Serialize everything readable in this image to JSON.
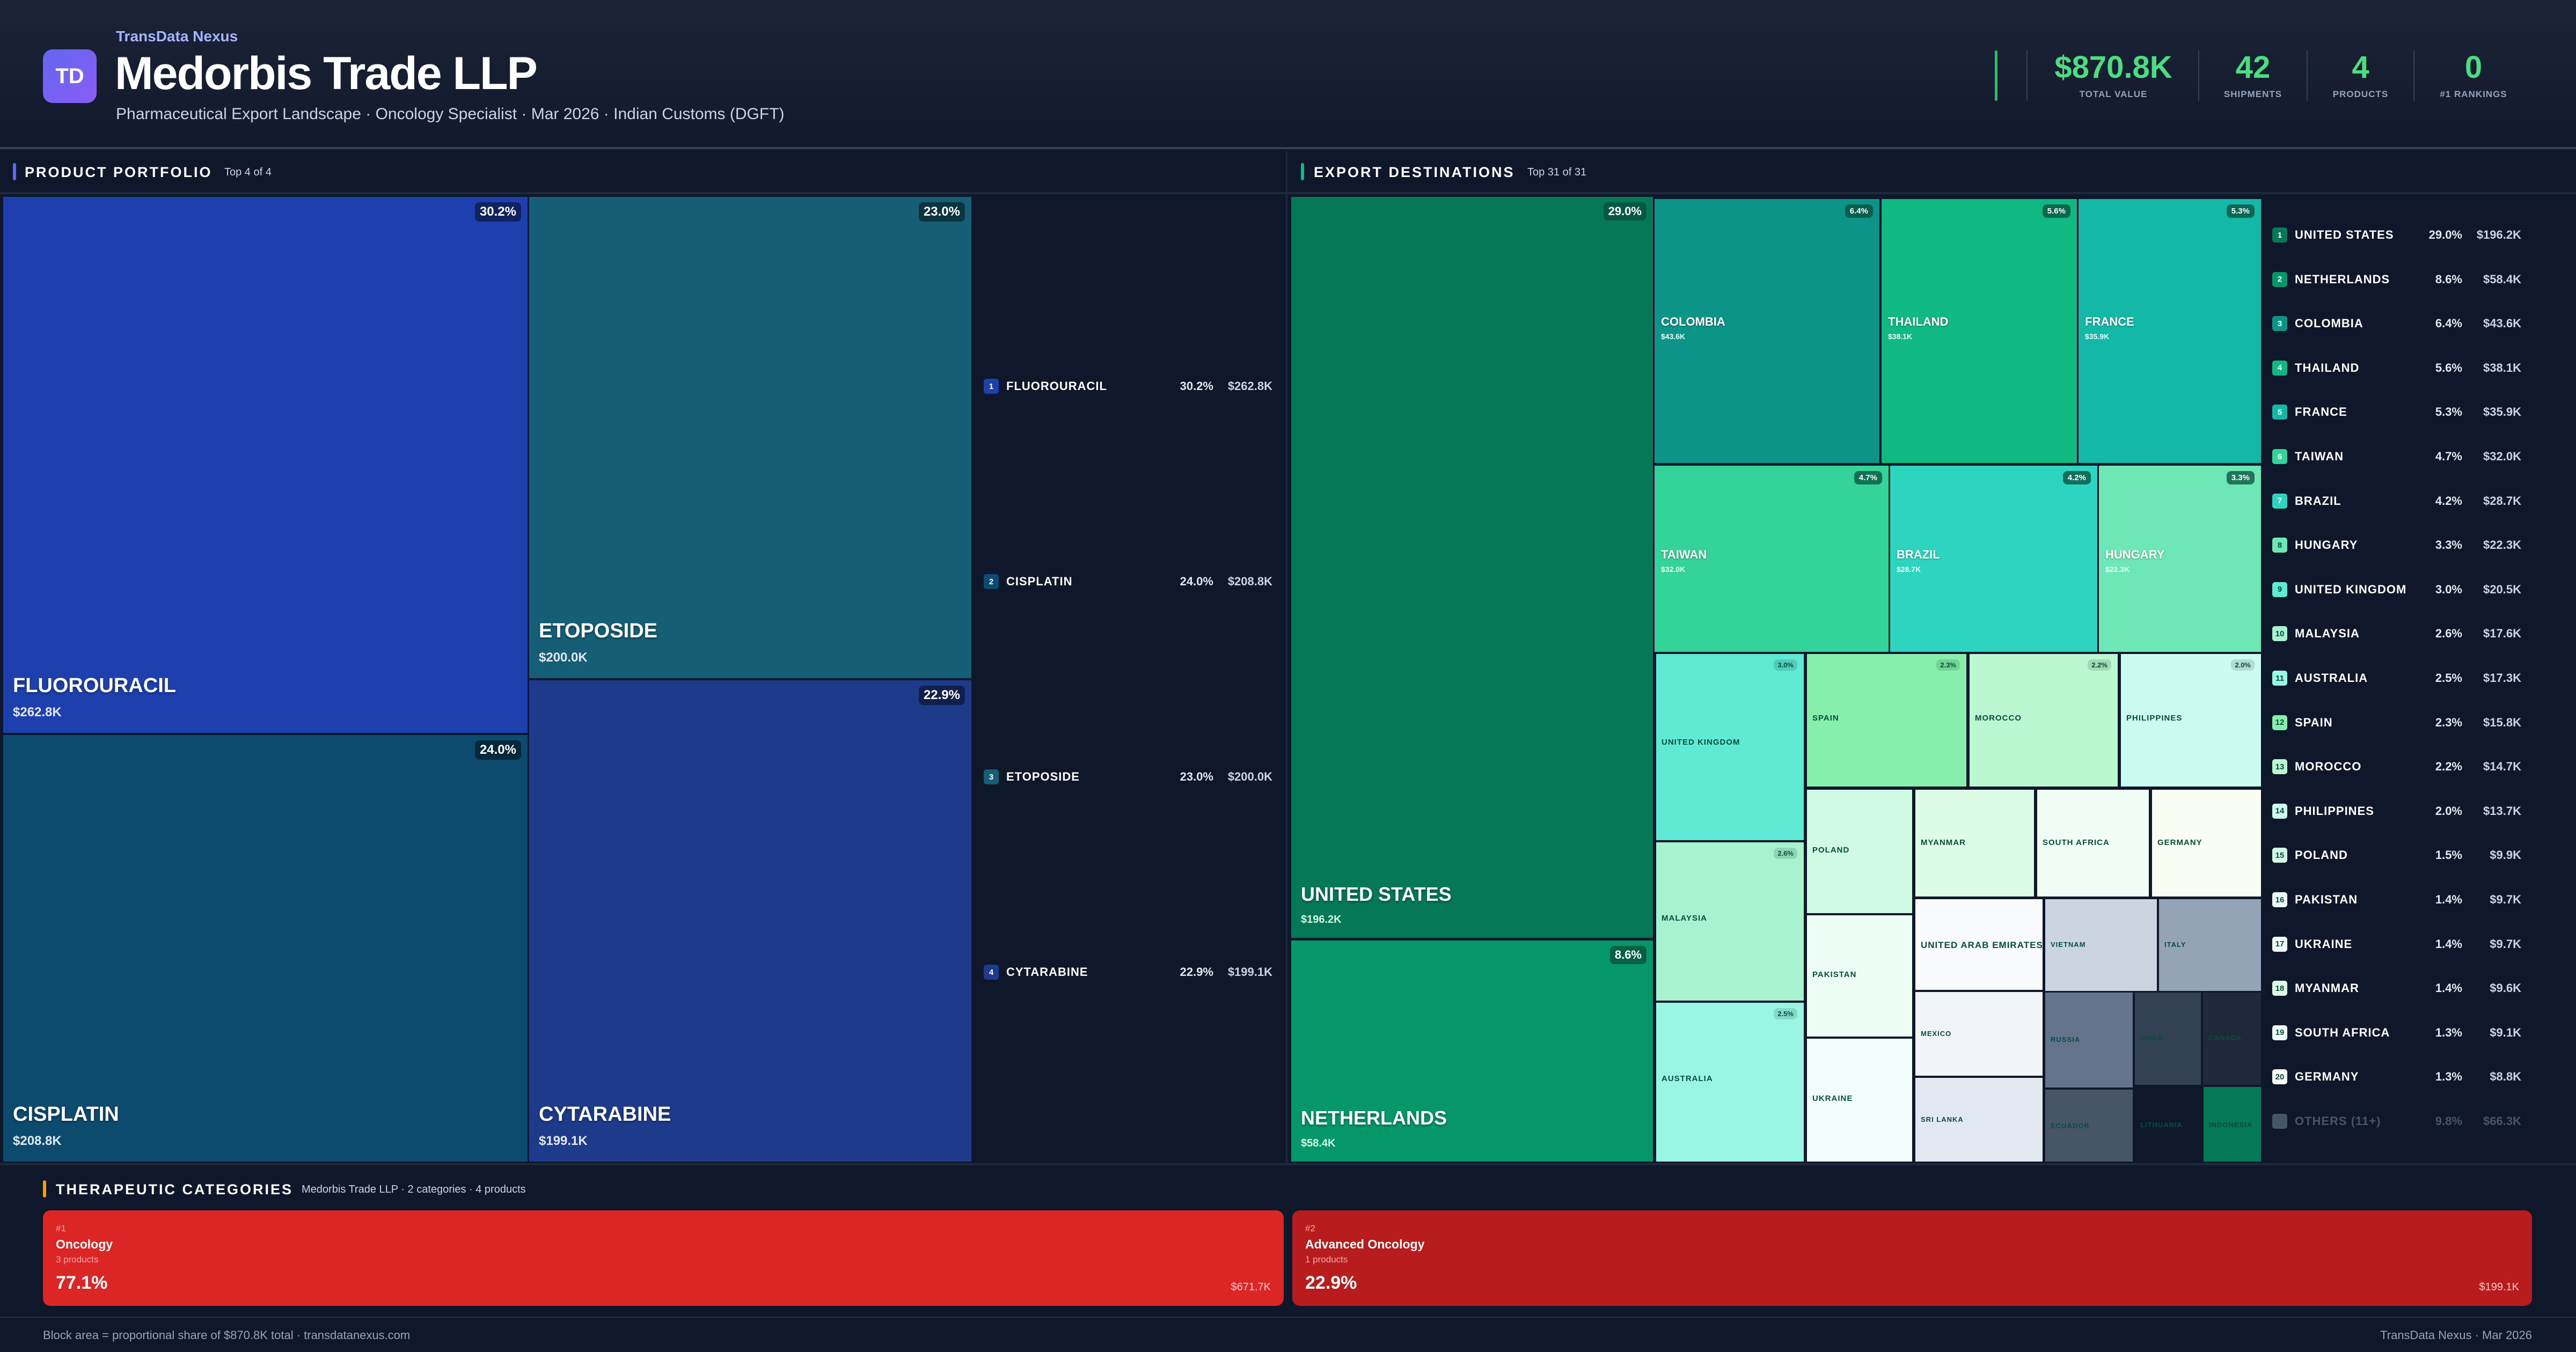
{
  "header": {
    "logo_text": "TD",
    "brand": "TransData Nexus",
    "title": "Medorbis Trade LLP",
    "subtitle": "Pharmaceutical Export Landscape · Oncology Specialist · Mar 2026 · Indian Customs (DGFT)",
    "accent_color": "#22c55e",
    "kpis": [
      {
        "value": "$870.8K",
        "label": "TOTAL VALUE"
      },
      {
        "value": "42",
        "label": "SHIPMENTS"
      },
      {
        "value": "4",
        "label": "PRODUCTS"
      },
      {
        "value": "0",
        "label": "#1 RANKINGS"
      }
    ]
  },
  "product_section": {
    "title": "PRODUCT PORTFOLIO",
    "subtitle": "Top 4 of 4",
    "accent_color": "#6366f1"
  },
  "export_section": {
    "title": "EXPORT DESTINATIONS",
    "subtitle": "Top 31 of 31",
    "accent_color": "#10b981"
  },
  "chart_data": [
    {
      "type": "treemap",
      "title": "PRODUCT PORTFOLIO",
      "items": [
        {
          "rank": "1",
          "name": "FLUOROURACIL",
          "pct": "30.2%",
          "value": "$262.8K",
          "color": "#1e40af"
        },
        {
          "rank": "2",
          "name": "CISPLATIN",
          "pct": "24.0%",
          "value": "$208.8K",
          "color": "#0c4a6e"
        },
        {
          "rank": "3",
          "name": "ETOPOSIDE",
          "pct": "23.0%",
          "value": "$200.0K",
          "color": "#155e75"
        },
        {
          "rank": "4",
          "name": "CYTARABINE",
          "pct": "22.9%",
          "value": "$199.1K",
          "color": "#1e3a8a"
        }
      ]
    },
    {
      "type": "treemap",
      "title": "EXPORT DESTINATIONS",
      "items": [
        {
          "rank": "1",
          "name": "UNITED STATES",
          "pct": "29.0%",
          "value": "$196.2K",
          "color": "#047857"
        },
        {
          "rank": "2",
          "name": "NETHERLANDS",
          "pct": "8.6%",
          "value": "$58.4K",
          "color": "#059669"
        },
        {
          "rank": "3",
          "name": "COLOMBIA",
          "pct": "6.4%",
          "value": "$43.6K",
          "color": "#0d9488"
        },
        {
          "rank": "4",
          "name": "THAILAND",
          "pct": "5.6%",
          "value": "$38.1K",
          "color": "#10b981"
        },
        {
          "rank": "5",
          "name": "FRANCE",
          "pct": "5.3%",
          "value": "$35.9K",
          "color": "#14b8a6"
        },
        {
          "rank": "6",
          "name": "TAIWAN",
          "pct": "4.7%",
          "value": "$32.0K",
          "color": "#34d399"
        },
        {
          "rank": "7",
          "name": "BRAZIL",
          "pct": "4.2%",
          "value": "$28.7K",
          "color": "#2dd4bf"
        },
        {
          "rank": "8",
          "name": "HUNGARY",
          "pct": "3.3%",
          "value": "$22.3K",
          "color": "#6ee7b7"
        },
        {
          "rank": "9",
          "name": "UNITED KINGDOM",
          "pct": "3.0%",
          "value": "$20.5K",
          "color": "#5eead4"
        },
        {
          "rank": "10",
          "name": "MALAYSIA",
          "pct": "2.6%",
          "value": "$17.6K",
          "color": "#a7f3d0"
        },
        {
          "rank": "11",
          "name": "AUSTRALIA",
          "pct": "2.5%",
          "value": "$17.3K",
          "color": "#99f6e4"
        },
        {
          "rank": "12",
          "name": "SPAIN",
          "pct": "2.3%",
          "value": "$15.8K",
          "color": "#86efac"
        },
        {
          "rank": "13",
          "name": "MOROCCO",
          "pct": "2.2%",
          "value": "$14.7K",
          "color": "#bbf7d0"
        },
        {
          "rank": "14",
          "name": "PHILIPPINES",
          "pct": "2.0%",
          "value": "$13.7K",
          "color": "#ccfbf1"
        },
        {
          "rank": "15",
          "name": "POLAND",
          "pct": "1.5%",
          "value": "$9.9K",
          "color": "#d1fae5"
        },
        {
          "rank": "16",
          "name": "PAKISTAN",
          "pct": "1.4%",
          "value": "$9.7K",
          "color": "#ecfdf5"
        },
        {
          "rank": "17",
          "name": "UKRAINE",
          "pct": "1.4%",
          "value": "$9.7K",
          "color": "#f0fdfa"
        },
        {
          "rank": "18",
          "name": "MYANMAR",
          "pct": "1.4%",
          "value": "$9.6K",
          "color": "#dcfce7"
        },
        {
          "rank": "19",
          "name": "SOUTH AFRICA",
          "pct": "1.3%",
          "value": "$9.1K",
          "color": "#f0fdf4"
        },
        {
          "rank": "20",
          "name": "GERMANY",
          "pct": "1.3%",
          "value": "$8.8K",
          "color": "#fafdf3"
        },
        {
          "name": "UNITED ARAB EMIRATES",
          "color": "#f8fafc"
        },
        {
          "name": "MEXICO",
          "color": "#f1f5f9"
        },
        {
          "name": "SRI LANKA",
          "color": "#e2e8f0"
        },
        {
          "name": "VIETNAM",
          "color": "#cbd5e1"
        },
        {
          "name": "ITALY",
          "color": "#94a3b8"
        },
        {
          "name": "RUSSIA",
          "color": "#64748b"
        },
        {
          "name": "ECUADOR",
          "color": "#475569"
        },
        {
          "name": "CHILE",
          "color": "#334155"
        },
        {
          "name": "CANADA",
          "color": "#1e293b"
        },
        {
          "name": "LITHUANIA",
          "color": "#0f172a"
        },
        {
          "name": "INDONESIA",
          "color": "#047857"
        }
      ],
      "others": {
        "name": "OTHERS (11+)",
        "pct": "9.8%",
        "value": "$66.3K",
        "color": "#475569"
      }
    }
  ],
  "categories": {
    "title": "THERAPEUTIC CATEGORIES",
    "subtitle": "Medorbis Trade LLP · 2 categories · 4 products",
    "accent_color": "#f59e0b",
    "items": [
      {
        "rank": "#1",
        "name": "Oncology",
        "products": "3 products",
        "pct": "77.1%",
        "value": "$671.7K",
        "color": "#dc2626"
      },
      {
        "rank": "#2",
        "name": "Advanced Oncology",
        "products": "1 products",
        "pct": "22.9%",
        "value": "$199.1K",
        "color": "#b91c1c"
      }
    ]
  },
  "footer": {
    "left": "Block area = proportional share of $870.8K total · transdatanexus.com",
    "right": "TransData Nexus · Mar 2026"
  }
}
